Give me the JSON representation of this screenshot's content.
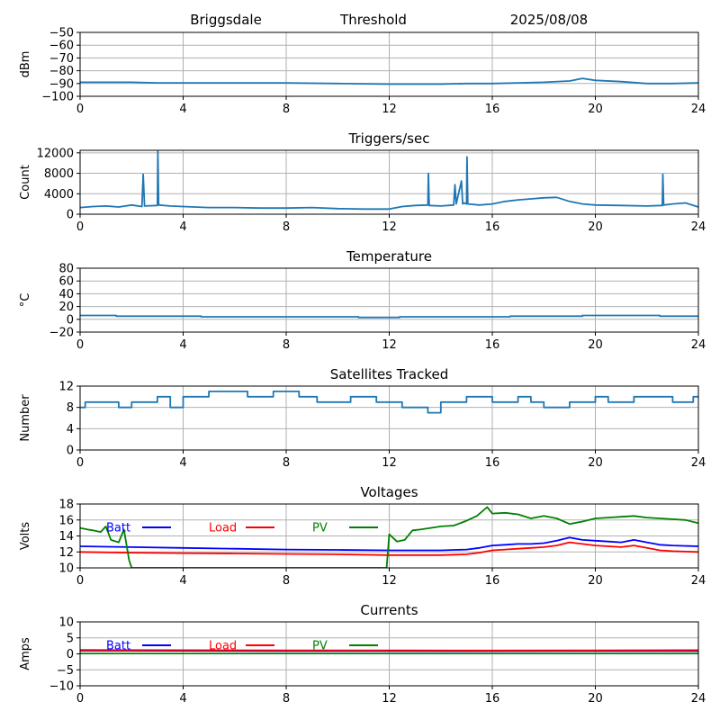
{
  "header": {
    "station": "Briggsdale",
    "label": "Threshold",
    "date": "2025/08/08"
  },
  "colors": {
    "series": "#1f77b4",
    "batt": "#0000ff",
    "load": "#ff0000",
    "pv": "#008000",
    "grid": "#b0b0b0"
  },
  "chart_data": [
    {
      "type": "line",
      "title": "",
      "ylabel": "dBm",
      "xlim": [
        0,
        24
      ],
      "ylim": [
        -100,
        -50
      ],
      "xticks": [
        "0",
        "4",
        "8",
        "12",
        "16",
        "20",
        "24"
      ],
      "yticks": [
        "−50",
        "−60",
        "−70",
        "−80",
        "−90",
        "−100"
      ],
      "ytick_values": [
        -50,
        -60,
        -70,
        -80,
        -90,
        -100
      ],
      "grid": true,
      "series": [
        {
          "color": "#1f77b4",
          "x": [
            0,
            1,
            2,
            3,
            4,
            6,
            8,
            10,
            12,
            13,
            14,
            15,
            16,
            17,
            18,
            19,
            19.5,
            20,
            21,
            22,
            23,
            24
          ],
          "y": [
            -89,
            -89,
            -89,
            -89.5,
            -89.5,
            -89.5,
            -89.5,
            -90,
            -90.5,
            -90.5,
            -90.5,
            -90,
            -90,
            -89.5,
            -89,
            -88,
            -86,
            -87.5,
            -88.5,
            -90,
            -90,
            -89.5
          ]
        }
      ]
    },
    {
      "type": "line",
      "title": "Triggers/sec",
      "ylabel": "Count",
      "xlim": [
        0,
        24
      ],
      "ylim": [
        0,
        12500
      ],
      "xticks": [
        "0",
        "4",
        "8",
        "12",
        "16",
        "20",
        "24"
      ],
      "yticks": [
        "12000",
        "8000",
        "4000",
        "0"
      ],
      "ytick_values": [
        12000,
        8000,
        4000,
        0
      ],
      "grid": true,
      "series": [
        {
          "color": "#1f77b4",
          "x": [
            0,
            0.5,
            1,
            1.5,
            2,
            2.4,
            2.45,
            2.5,
            3,
            3.02,
            3.05,
            3.5,
            4,
            5,
            6,
            7,
            8,
            9,
            10,
            11,
            12,
            12.5,
            13,
            13.5,
            13.52,
            13.55,
            14,
            14.5,
            14.55,
            14.6,
            14.8,
            14.85,
            14.9,
            15,
            15.02,
            15.05,
            15.5,
            16,
            16.5,
            17,
            17.5,
            18,
            18.5,
            19,
            19.5,
            20,
            21,
            22,
            22.6,
            22.62,
            22.65,
            23,
            23.5,
            24
          ],
          "y": [
            1300,
            1500,
            1600,
            1400,
            1800,
            1500,
            7800,
            1600,
            1700,
            12300,
            1800,
            1600,
            1500,
            1300,
            1300,
            1200,
            1200,
            1300,
            1100,
            1000,
            1000,
            1500,
            1700,
            1800,
            8000,
            1700,
            1600,
            1800,
            5800,
            2000,
            6500,
            2000,
            2200,
            2000,
            11200,
            2000,
            1800,
            2000,
            2500,
            2800,
            3000,
            3200,
            3300,
            2500,
            2000,
            1800,
            1700,
            1600,
            1700,
            7800,
            1800,
            2000,
            2200,
            1400
          ]
        }
      ]
    },
    {
      "type": "line",
      "title": "Temperature",
      "ylabel": "°C",
      "xlim": [
        0,
        24
      ],
      "ylim": [
        -20,
        80
      ],
      "xticks": [
        "0",
        "4",
        "8",
        "12",
        "16",
        "20",
        "24"
      ],
      "yticks": [
        "80",
        "60",
        "40",
        "20",
        "0",
        "−20"
      ],
      "ytick_values": [
        80,
        60,
        40,
        20,
        0,
        -20
      ],
      "grid": true,
      "series": [
        {
          "color": "#1f77b4",
          "x": [
            0,
            1.4,
            1.4,
            4.7,
            4.7,
            10.8,
            10.8,
            12.4,
            12.4,
            16.7,
            16.7,
            19.5,
            19.5,
            22.5,
            22.5,
            24
          ],
          "y": [
            6,
            6,
            5,
            5,
            4,
            4,
            3,
            3,
            4,
            4,
            5,
            5,
            6,
            6,
            5,
            5
          ]
        }
      ]
    },
    {
      "type": "line",
      "title": "Satellites Tracked",
      "ylabel": "Number",
      "xlim": [
        0,
        24
      ],
      "ylim": [
        0,
        12
      ],
      "xticks": [
        "0",
        "4",
        "8",
        "12",
        "16",
        "20",
        "24"
      ],
      "yticks": [
        "12",
        "8",
        "4",
        "0"
      ],
      "ytick_values": [
        12,
        8,
        4,
        0
      ],
      "grid": true,
      "series": [
        {
          "color": "#1f77b4",
          "x": [
            0,
            0.2,
            0.2,
            1.5,
            1.5,
            2.0,
            2.0,
            3.0,
            3.0,
            3.5,
            3.5,
            4.0,
            4.0,
            5.0,
            5.0,
            6.5,
            6.5,
            7.5,
            7.5,
            8.5,
            8.5,
            9.2,
            9.2,
            10.5,
            10.5,
            11.5,
            11.5,
            12.5,
            12.5,
            13.5,
            13.5,
            14.0,
            14.0,
            15.0,
            15.0,
            16.0,
            16.0,
            17.0,
            17.0,
            17.5,
            17.5,
            18.0,
            18.0,
            19.0,
            19.0,
            20.0,
            20.0,
            20.5,
            20.5,
            21.5,
            21.5,
            23.0,
            23.0,
            23.8,
            23.8,
            24
          ],
          "y": [
            8,
            8,
            9,
            9,
            8,
            8,
            9,
            9,
            10,
            10,
            8,
            8,
            10,
            10,
            11,
            11,
            10,
            10,
            11,
            11,
            10,
            10,
            9,
            9,
            10,
            10,
            9,
            9,
            8,
            8,
            7,
            7,
            9,
            9,
            10,
            10,
            9,
            9,
            10,
            10,
            9,
            9,
            8,
            8,
            9,
            9,
            10,
            10,
            9,
            9,
            10,
            10,
            9,
            9,
            10,
            10
          ]
        }
      ]
    },
    {
      "type": "line",
      "title": "Voltages",
      "ylabel": "Volts",
      "xlim": [
        0,
        24
      ],
      "ylim": [
        10,
        18
      ],
      "xticks": [
        "0",
        "4",
        "8",
        "12",
        "16",
        "20",
        "24"
      ],
      "yticks": [
        "18",
        "16",
        "14",
        "12",
        "10"
      ],
      "ytick_values": [
        18,
        16,
        14,
        12,
        10
      ],
      "grid": true,
      "legend": "top-left",
      "series": [
        {
          "name": "Batt",
          "color": "#0000ff",
          "x": [
            0,
            2,
            4,
            6,
            8,
            10,
            12,
            14,
            15,
            15.5,
            16,
            16.5,
            17,
            17.5,
            18,
            18.5,
            19,
            19.5,
            20,
            20.5,
            21,
            21.5,
            22,
            22.5,
            23,
            24
          ],
          "y": [
            12.7,
            12.6,
            12.5,
            12.4,
            12.3,
            12.25,
            12.2,
            12.2,
            12.3,
            12.5,
            12.8,
            12.9,
            13.0,
            13.0,
            13.1,
            13.4,
            13.8,
            13.5,
            13.4,
            13.3,
            13.2,
            13.5,
            13.2,
            12.9,
            12.8,
            12.7
          ]
        },
        {
          "name": "Load",
          "color": "#ff0000",
          "x": [
            0,
            2,
            4,
            6,
            8,
            10,
            12,
            14,
            15,
            15.5,
            16,
            16.5,
            17,
            17.5,
            18,
            18.5,
            19,
            19.5,
            20,
            20.5,
            21,
            21.5,
            22,
            22.5,
            23,
            24
          ],
          "y": [
            12.0,
            11.9,
            11.85,
            11.8,
            11.75,
            11.7,
            11.6,
            11.6,
            11.7,
            11.9,
            12.2,
            12.3,
            12.4,
            12.5,
            12.6,
            12.8,
            13.2,
            13.0,
            12.8,
            12.7,
            12.6,
            12.8,
            12.5,
            12.2,
            12.1,
            12.0
          ]
        },
        {
          "name": "PV",
          "color": "#008000",
          "x": [
            0,
            0.3,
            0.5,
            0.8,
            1.0,
            1.2,
            1.5,
            1.7,
            1.9,
            2.0,
            11.9,
            12.0,
            12.3,
            12.6,
            12.9,
            13.2,
            13.6,
            14.0,
            14.5,
            15.0,
            15.4,
            15.8,
            16.0,
            16.5,
            17.0,
            17.5,
            18.0,
            18.5,
            19.0,
            19.5,
            20.0,
            20.5,
            21.0,
            21.5,
            22.0,
            22.5,
            23.0,
            23.5,
            24
          ],
          "y": [
            15.0,
            14.8,
            14.7,
            14.5,
            15.2,
            13.5,
            13.2,
            14.8,
            11.0,
            10.0,
            10.0,
            14.2,
            13.3,
            13.5,
            14.7,
            14.8,
            15.0,
            15.2,
            15.3,
            15.9,
            16.5,
            17.6,
            16.8,
            16.9,
            16.7,
            16.2,
            16.5,
            16.2,
            15.5,
            15.8,
            16.2,
            16.3,
            16.4,
            16.5,
            16.3,
            16.2,
            16.1,
            16.0,
            15.6
          ]
        }
      ]
    },
    {
      "type": "line",
      "title": "Currents",
      "ylabel": "Amps",
      "xlim": [
        0,
        24
      ],
      "ylim": [
        -10,
        10
      ],
      "xticks": [
        "0",
        "4",
        "8",
        "12",
        "16",
        "20",
        "24"
      ],
      "yticks": [
        "10",
        "5",
        "0",
        "−5",
        "−10"
      ],
      "ytick_values": [
        10,
        5,
        0,
        -5,
        -10
      ],
      "grid": true,
      "legend": "top-left",
      "series": [
        {
          "name": "Batt",
          "color": "#0000ff",
          "x": [
            0,
            4,
            8,
            12,
            16,
            20,
            24
          ],
          "y": [
            1.0,
            0.95,
            0.9,
            0.9,
            0.85,
            0.9,
            0.9
          ]
        },
        {
          "name": "Load",
          "color": "#ff0000",
          "x": [
            0,
            4,
            8,
            12,
            16,
            20,
            24
          ],
          "y": [
            1.2,
            1.15,
            1.1,
            1.1,
            1.05,
            1.1,
            1.15
          ]
        },
        {
          "name": "PV",
          "color": "#008000",
          "x": [
            0,
            4,
            8,
            12,
            16,
            20,
            24
          ],
          "y": [
            0.1,
            0.1,
            0.1,
            0.1,
            0.1,
            0.1,
            0.1
          ]
        }
      ]
    }
  ]
}
